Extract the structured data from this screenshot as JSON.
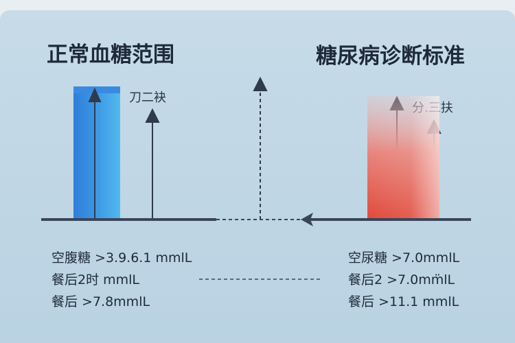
{
  "left": {
    "title": "正常血糖范围",
    "marker_label": "刀二袂",
    "lines": [
      "空腹糖 >3.9.6.1 mmlL",
      "餐后2时 mmlL",
      "餐后 >7.8mmlL"
    ]
  },
  "right": {
    "title": "糖尿病诊断标准",
    "marker_label": "分.三扶",
    "lines": [
      "空尿糖 >7.0mmlL",
      "餐后2 >7.0mm̈lL",
      "餐后 >11.1 mmlL"
    ]
  }
}
